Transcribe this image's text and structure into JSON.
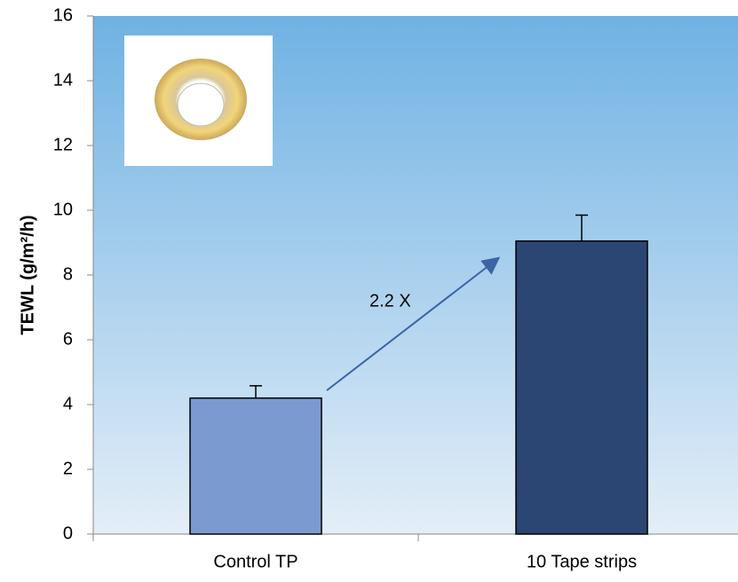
{
  "chart_data": {
    "type": "bar",
    "y_label": "TEWL (g/m²/h)",
    "categories": [
      "Control TP",
      "10 Tape strips"
    ],
    "values": [
      4.2,
      9.05
    ],
    "errors": [
      0.38,
      0.8
    ],
    "colors": [
      "#7b9bd0",
      "#2c4674"
    ],
    "ylim": [
      0,
      16
    ],
    "yticks": [
      0,
      2,
      4,
      6,
      8,
      10,
      12,
      14,
      16
    ],
    "annotation": "2.2 X"
  }
}
